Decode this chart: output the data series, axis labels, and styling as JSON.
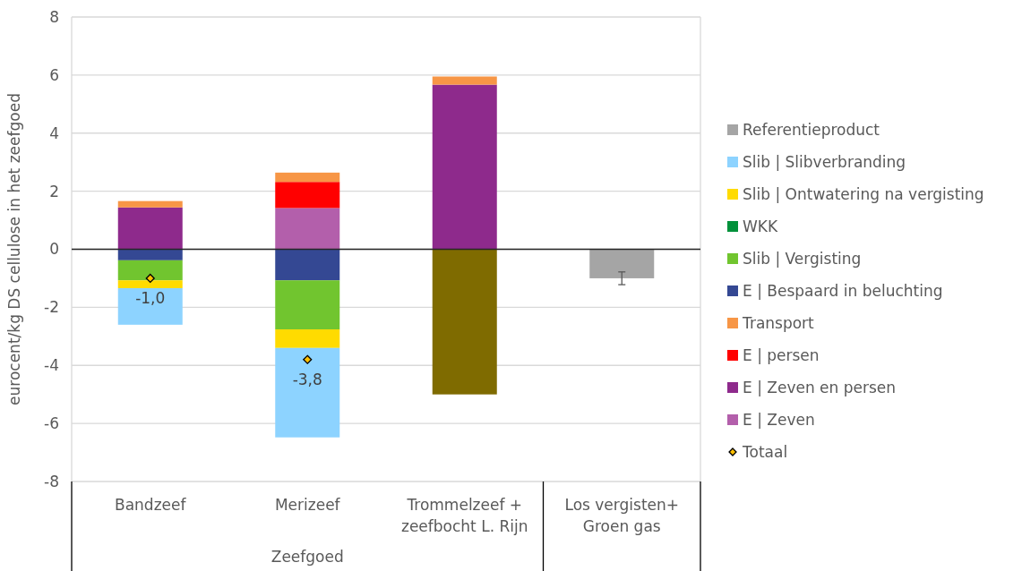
{
  "chart_data": {
    "type": "bar",
    "stacked": true,
    "ylabel": "eurocent/kg DS cellulose in het zeefgoed",
    "categories": [
      "Bandzeef",
      "Merizeef",
      "Trommelzeef + zeefbocht L. Rijn",
      "Los vergisten+ Groen gas"
    ],
    "ylim": [
      -8,
      8
    ],
    "yticks": [
      -8,
      -6,
      -4,
      -2,
      0,
      2,
      4,
      6,
      8
    ],
    "grid": "y",
    "legend": "right",
    "annotations": [
      "Zeefgoed"
    ],
    "series": [
      {
        "name": "E | Zeven",
        "color": "#b35fab",
        "values": [
          null,
          1.42,
          null,
          null
        ]
      },
      {
        "name": "E | Zeven en persen",
        "color": "#8e2a8c",
        "values": [
          1.44,
          null,
          5.67,
          null
        ]
      },
      {
        "name": "E | persen",
        "color": "#ff0000",
        "values": [
          null,
          0.9,
          null,
          null
        ]
      },
      {
        "name": "Transport",
        "color": "#f79646",
        "values": [
          0.22,
          0.32,
          0.28,
          null
        ]
      },
      {
        "name": "E | Bespaard in beluchting",
        "color": "#344893",
        "values": [
          -0.38,
          -1.07,
          null,
          null
        ]
      },
      {
        "name": "Slib | Vergisting",
        "color": "#71c52f",
        "values": [
          -0.69,
          -1.69,
          null,
          null
        ]
      },
      {
        "name": "WKK",
        "color": "#00913a",
        "values": [
          0,
          0,
          null,
          null
        ]
      },
      {
        "name": "Slib | Ontwatering na vergisting",
        "color": "#ffdb00",
        "values": [
          -0.27,
          -0.64,
          null,
          null
        ]
      },
      {
        "name": "Slib | Slibverbranding",
        "color": "#8dd3ff",
        "values": [
          -1.26,
          -3.08,
          null,
          null
        ]
      },
      {
        "color": "#7f6b00",
        "values": [
          null,
          null,
          -5.0,
          null
        ]
      },
      {
        "name": "Referentieproduct",
        "color": "#a5a5a5",
        "values": [
          null,
          null,
          null,
          -1.0
        ],
        "errors": [
          null,
          null,
          null,
          0.22
        ]
      },
      {
        "name": "Totaal",
        "type": "scatter",
        "marker": "diamond",
        "color": "#ffc000",
        "x": [
          "Bandzeef",
          "Merizeef"
        ],
        "values": [
          -1.0,
          -3.8
        ],
        "value_labels": [
          "-1,0",
          "-3,8"
        ]
      }
    ]
  }
}
